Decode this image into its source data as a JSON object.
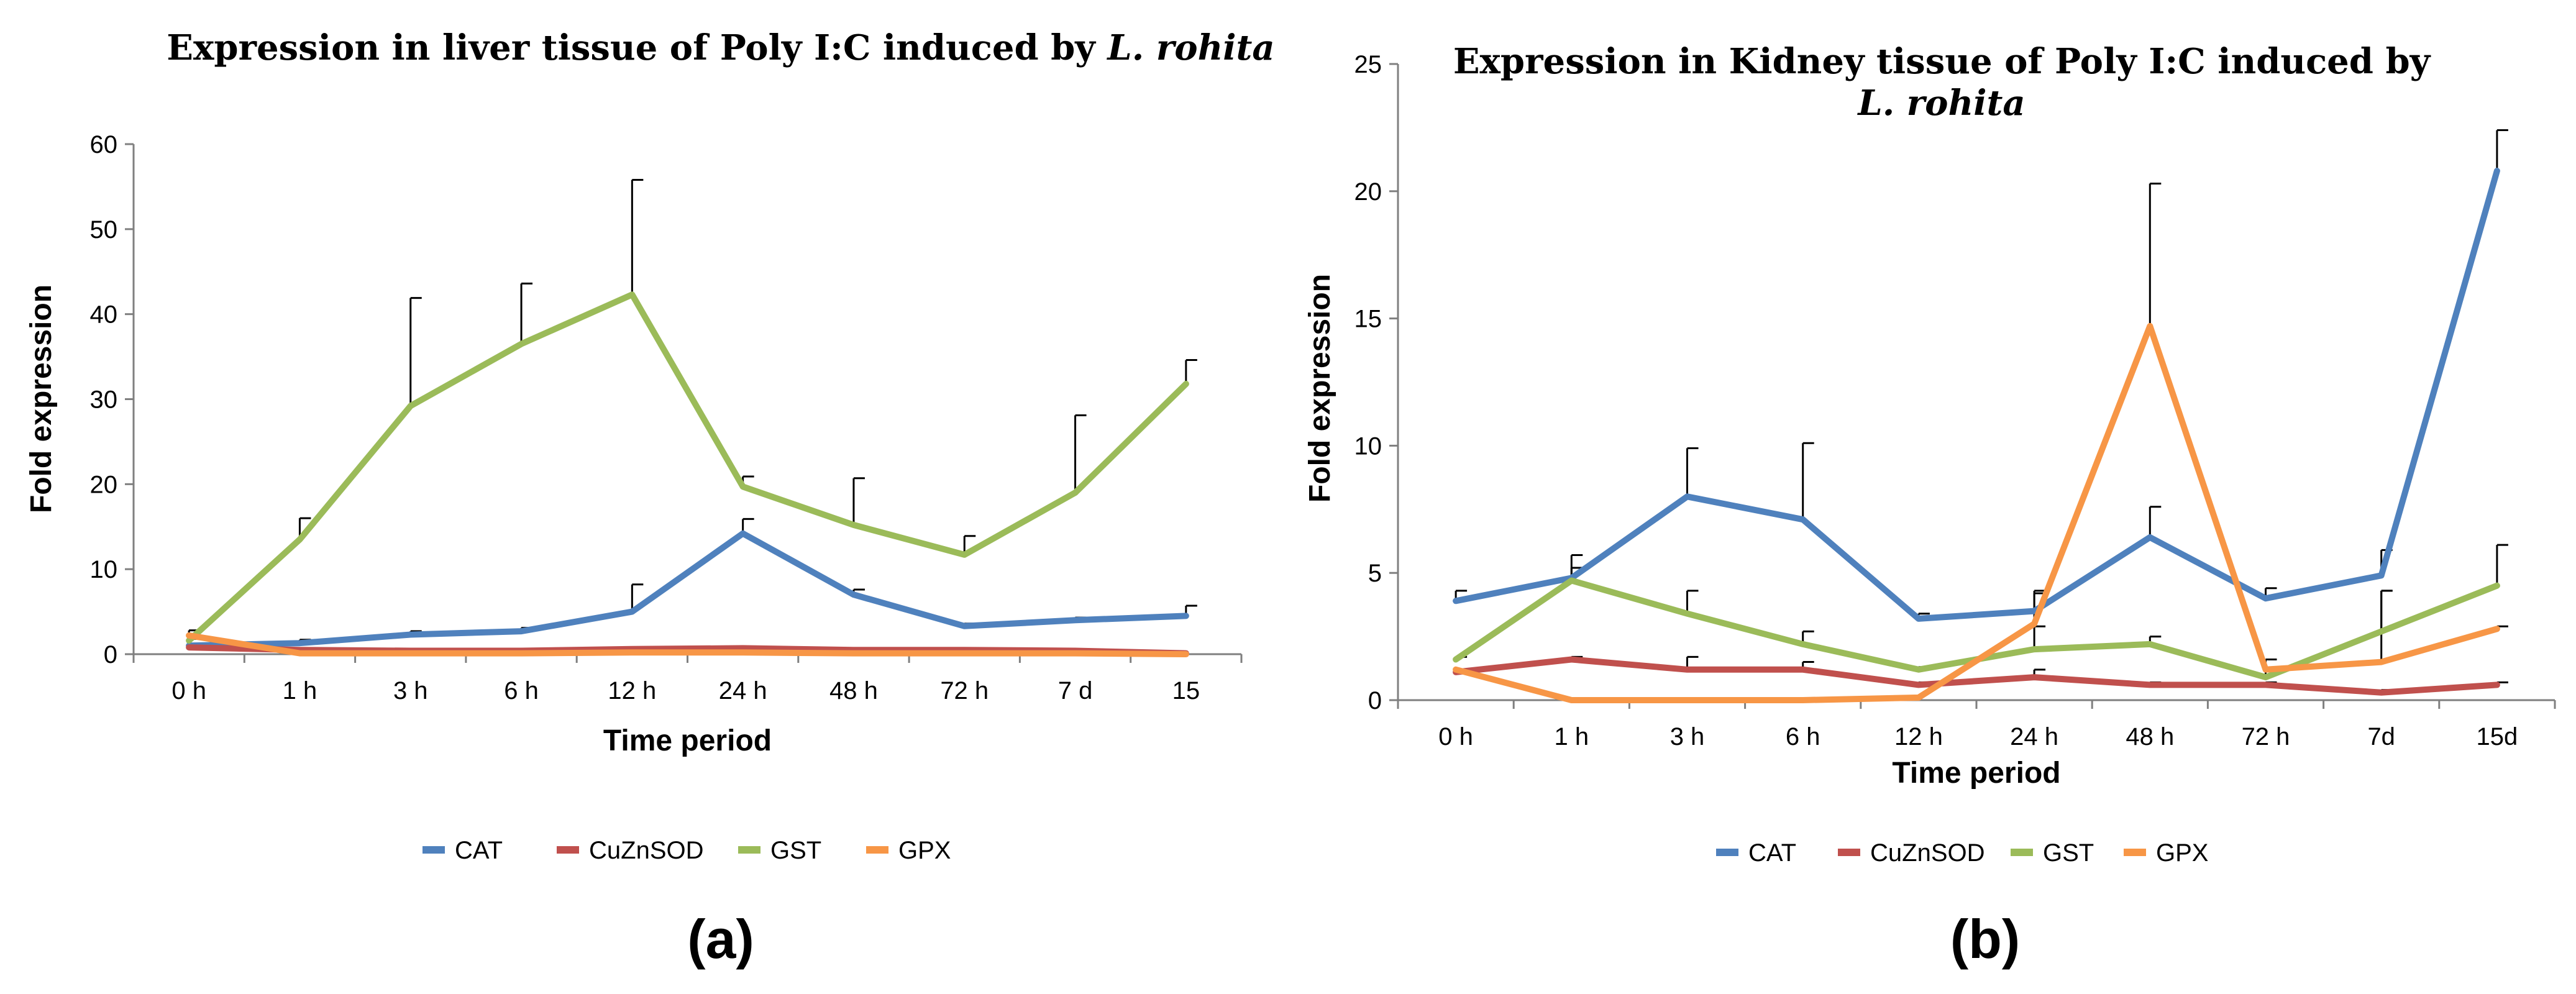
{
  "chart_data": [
    {
      "type": "line",
      "panel_label": "(a)",
      "title": "Expression in liver tissue of Poly I:C induced by",
      "title_italic": "L. rohita",
      "xlabel": "Time period",
      "ylabel": "Fold expression",
      "categories": [
        "0 h",
        "1 h",
        "3 h",
        "6 h",
        "12 h",
        "24 h",
        "48 h",
        "72 h",
        "7 d",
        "15"
      ],
      "ylim": [
        0,
        60
      ],
      "yticks": [
        0,
        10,
        20,
        30,
        40,
        50,
        60
      ],
      "legend_position": "bottom",
      "series": [
        {
          "name": "CAT",
          "color": "#4F81BD",
          "values": [
            1.0,
            1.3,
            2.3,
            2.7,
            5.0,
            14.2,
            7.0,
            3.3,
            4.0,
            4.5
          ],
          "errors": [
            0.8,
            0.4,
            0.4,
            0.4,
            3.2,
            1.7,
            0.6,
            0.3,
            0.3,
            1.2
          ]
        },
        {
          "name": "CuZnSOD",
          "color": "#C0504D",
          "values": [
            0.8,
            0.5,
            0.4,
            0.4,
            0.6,
            0.7,
            0.5,
            0.5,
            0.4,
            0.1
          ],
          "errors": [
            0.0,
            0.0,
            0.0,
            0.0,
            0.0,
            0.0,
            0.0,
            0.0,
            0.0,
            0.0
          ]
        },
        {
          "name": "GST",
          "color": "#9BBB59",
          "values": [
            1.6,
            13.5,
            29.2,
            36.5,
            42.3,
            19.7,
            15.2,
            11.7,
            19.0,
            31.8
          ],
          "errors": [
            1.2,
            2.5,
            12.7,
            7.1,
            13.5,
            1.2,
            5.5,
            2.2,
            9.1,
            2.8
          ]
        },
        {
          "name": "GPX",
          "color": "#F79646",
          "values": [
            2.2,
            0.1,
            0.1,
            0.1,
            0.2,
            0.2,
            0.1,
            0.1,
            0.1,
            0.0
          ],
          "errors": [
            0.0,
            0.0,
            0.0,
            0.0,
            0.0,
            0.0,
            0.0,
            0.0,
            0.0,
            0.0
          ]
        }
      ]
    },
    {
      "type": "line",
      "panel_label": "(b)",
      "title": "Expression in Kidney tissue of  Poly I:C induced by",
      "title_italic": "L. rohita",
      "xlabel": "Time period",
      "ylabel": "Fold expression",
      "categories": [
        "0 h",
        "1 h",
        "3 h",
        "6 h",
        "12 h",
        "24 h",
        "48 h",
        "72 h",
        "7d",
        "15d"
      ],
      "ylim": [
        0,
        25
      ],
      "yticks": [
        0,
        5,
        10,
        15,
        20,
        25
      ],
      "legend_position": "bottom",
      "series": [
        {
          "name": "CAT",
          "color": "#4F81BD",
          "values": [
            3.9,
            4.8,
            8.0,
            7.1,
            3.2,
            3.5,
            6.4,
            4.0,
            4.9,
            20.8
          ],
          "errors": [
            0.4,
            0.4,
            1.9,
            3.0,
            0.2,
            0.8,
            1.2,
            0.4,
            1.0,
            1.6
          ]
        },
        {
          "name": "CuZnSOD",
          "color": "#C0504D",
          "values": [
            1.1,
            1.6,
            1.2,
            1.2,
            0.6,
            0.9,
            0.6,
            0.6,
            0.3,
            0.6
          ],
          "errors": [
            0.1,
            0.1,
            0.5,
            0.3,
            0.1,
            0.3,
            0.1,
            0.1,
            0.1,
            0.1
          ]
        },
        {
          "name": "GST",
          "color": "#9BBB59",
          "values": [
            1.6,
            4.7,
            3.4,
            2.2,
            1.2,
            2.0,
            2.2,
            0.9,
            2.7,
            4.5
          ],
          "errors": [
            0.1,
            1.0,
            0.9,
            0.5,
            0.1,
            0.9,
            0.3,
            0.7,
            1.6,
            1.6
          ]
        },
        {
          "name": "GPX",
          "color": "#F79646",
          "values": [
            1.2,
            0.0,
            0.0,
            0.0,
            0.1,
            3.0,
            14.7,
            1.2,
            1.5,
            2.8
          ],
          "errors": [
            0.0,
            0.0,
            0.0,
            0.0,
            0.0,
            1.2,
            5.6,
            0.0,
            2.8,
            0.1
          ]
        }
      ]
    }
  ]
}
